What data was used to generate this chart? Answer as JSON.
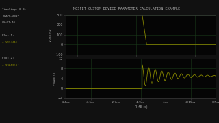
{
  "title": "MOSFET CUSTOM DEVICE PARAMETER CALCULATION EXAMPLE",
  "bg_color": "#111111",
  "plot_bg": "#050505",
  "grid_color": "#1a3a1a",
  "axis_color": "#444444",
  "text_color": "#aaaaaa",
  "label_color_1": "#8a8a00",
  "label_color_2": "#8a8a00",
  "xmin": -4.4e-09,
  "xmax": 7e-10,
  "xlabel": "TIME (s)",
  "ytop_label": "VDS(J) (V)",
  "ybot_label": "VGATE (V)",
  "ytop_min": -100,
  "ytop_max": 300,
  "ybot_min": -4,
  "ybot_max": 12,
  "switch_time": -1.8e-09,
  "vds_high": 300,
  "vds_low": 0,
  "vgs_settle": 5,
  "vgs_osc_amp": 4.5,
  "vgs_osc_freq": 4500000000.0,
  "vgs_osc_decay": 1200000000.0
}
